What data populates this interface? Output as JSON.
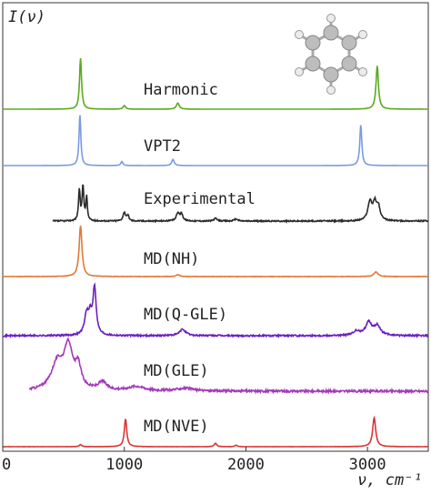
{
  "chart_data": {
    "type": "line",
    "ylabel": "I(ν)",
    "xlabel": "ν, cm⁻¹",
    "xlim": [
      0,
      3500
    ],
    "xticks": [
      0,
      1000,
      2000,
      3000
    ],
    "tick_labels": [
      "0",
      "1000",
      "2000",
      "3000"
    ],
    "grid": false,
    "legend": "none",
    "inset": "benzene-molecule",
    "series": [
      {
        "name": "Harmonic",
        "color": "#5aaa1e",
        "xrange": [
          0,
          3500
        ],
        "noise": 0,
        "peaks": [
          [
            640,
            1.0,
            10
          ],
          [
            1000,
            0.07,
            12
          ],
          [
            1440,
            0.12,
            14
          ],
          [
            3080,
            0.85,
            12
          ]
        ]
      },
      {
        "name": "VPT2",
        "color": "#7a9be0",
        "xrange": [
          0,
          3500
        ],
        "noise": 0,
        "peaks": [
          [
            635,
            1.0,
            9
          ],
          [
            980,
            0.08,
            10
          ],
          [
            1400,
            0.12,
            12
          ],
          [
            2945,
            0.8,
            10
          ]
        ]
      },
      {
        "name": "Experimental",
        "color": "#2a2a2a",
        "xrange": [
          410,
          3500
        ],
        "noise": 0.015,
        "peaks": [
          [
            630,
            0.7,
            8
          ],
          [
            660,
            0.8,
            8
          ],
          [
            690,
            0.55,
            7
          ],
          [
            1000,
            0.2,
            12
          ],
          [
            1030,
            0.12,
            10
          ],
          [
            1440,
            0.18,
            14
          ],
          [
            1470,
            0.16,
            14
          ],
          [
            1750,
            0.06,
            15
          ],
          [
            1920,
            0.05,
            15
          ],
          [
            3020,
            0.42,
            20
          ],
          [
            3060,
            0.38,
            18
          ],
          [
            3090,
            0.3,
            16
          ]
        ]
      },
      {
        "name": "MD(NH)",
        "color": "#e07a3a",
        "xrange": [
          0,
          3500
        ],
        "noise": 0.004,
        "peaks": [
          [
            640,
            1.0,
            14
          ],
          [
            1440,
            0.04,
            15
          ],
          [
            3070,
            0.09,
            20
          ]
        ]
      },
      {
        "name": "MD(Q-GLE)",
        "color": "#6a1fc0",
        "xrange": [
          0,
          3500
        ],
        "noise": 0.015,
        "peaks": [
          [
            690,
            0.4,
            20
          ],
          [
            755,
            0.9,
            16
          ],
          [
            720,
            0.3,
            15
          ],
          [
            1480,
            0.12,
            30
          ],
          [
            2910,
            0.08,
            30
          ],
          [
            3010,
            0.25,
            30
          ],
          [
            3080,
            0.18,
            30
          ]
        ]
      },
      {
        "name": "MD(GLE)",
        "color": "#a43ab8",
        "xrange": [
          220,
          3500
        ],
        "noise": 0.02,
        "peaks": [
          [
            450,
            0.5,
            60
          ],
          [
            540,
            0.75,
            40
          ],
          [
            620,
            0.4,
            30
          ],
          [
            820,
            0.15,
            40
          ],
          [
            1100,
            0.08,
            80
          ],
          [
            1500,
            0.05,
            80
          ]
        ]
      },
      {
        "name": "MD(NVE)",
        "color": "#dd3333",
        "xrange": [
          0,
          3500
        ],
        "noise": 0.003,
        "peaks": [
          [
            640,
            0.07,
            12
          ],
          [
            1010,
            0.95,
            12
          ],
          [
            1750,
            0.12,
            12
          ],
          [
            1920,
            0.05,
            12
          ],
          [
            3055,
            1.0,
            15
          ]
        ]
      }
    ]
  }
}
